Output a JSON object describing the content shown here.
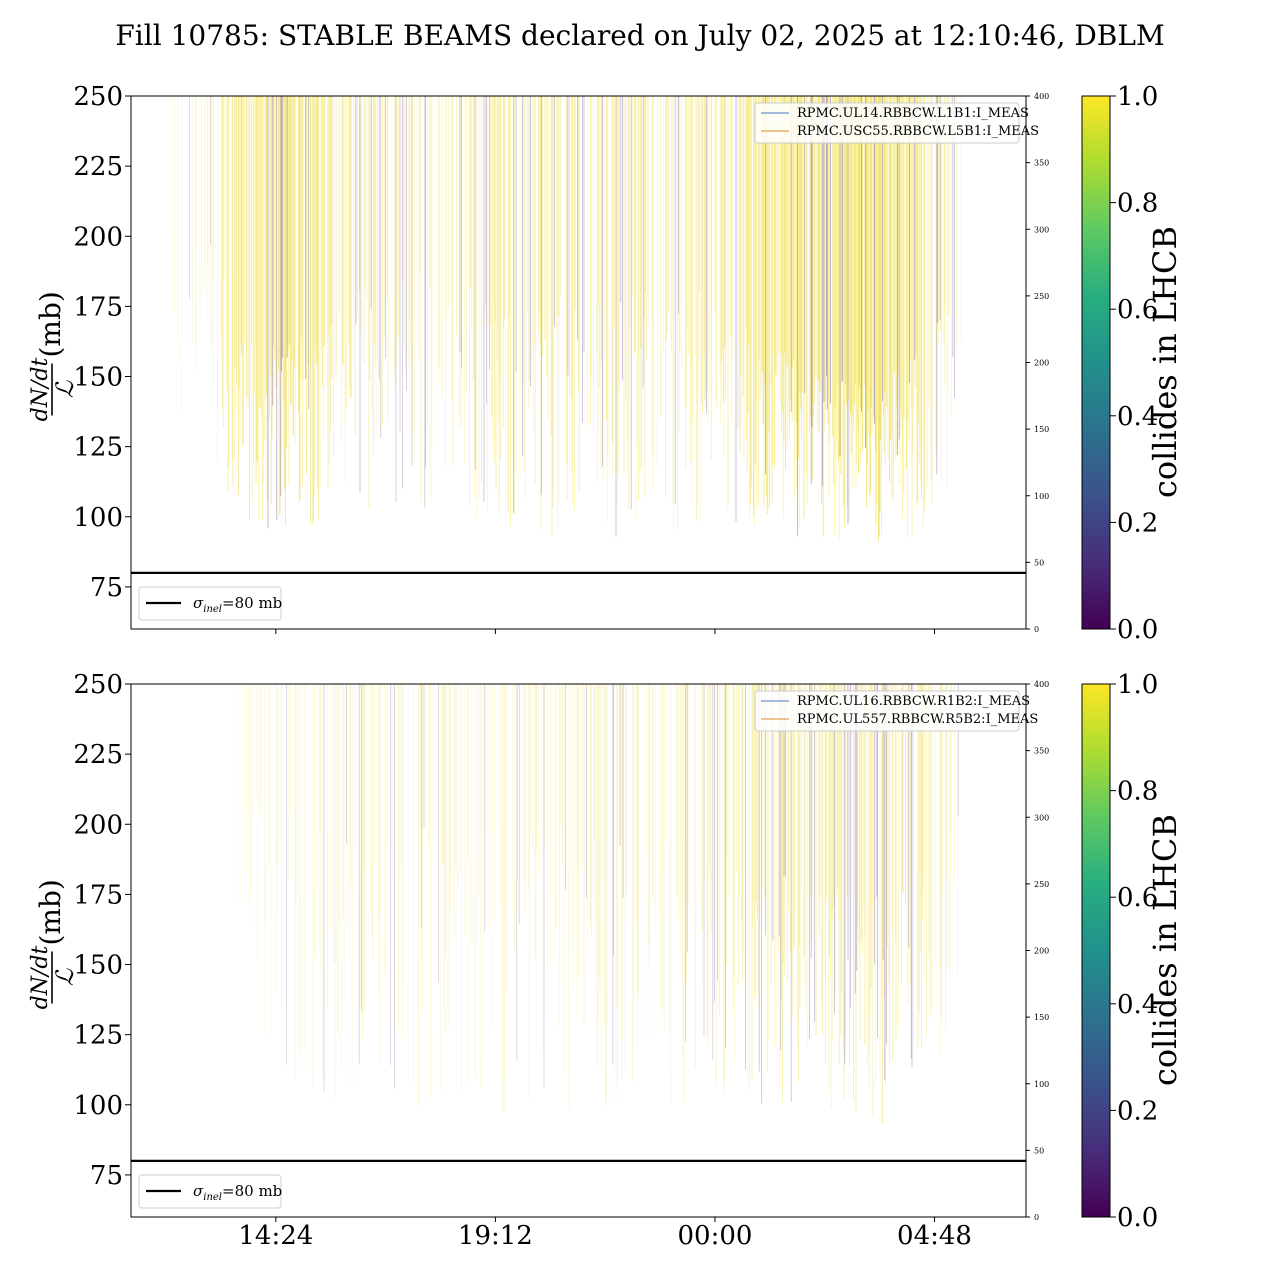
{
  "title": "Fill 10785: STABLE BEAMS declared on July 02, 2025 at 12:10:46, DBLM",
  "chart_data": [
    {
      "type": "line",
      "panel": "top",
      "ylabel": "dN/dt / L (mb)",
      "ylim": [
        60,
        250
      ],
      "yticks": [
        75,
        100,
        125,
        150,
        175,
        200,
        225,
        250
      ],
      "y2lim": [
        0,
        400
      ],
      "y2ticks": [
        0,
        50,
        100,
        150,
        200,
        250,
        300,
        350,
        400
      ],
      "xlim": [
        "11:14",
        "06:48"
      ],
      "xticks": [
        "14:24",
        "19:12",
        "00:00",
        "04:48"
      ],
      "show_xticklabels": false,
      "legend_top": [
        "RPMC.UL14.RBBCW.L1B1:I_MEAS",
        "RPMC.USC55.RBBCW.L5B1:I_MEAS"
      ],
      "legend_bottom": [
        "σinel=80 mb"
      ],
      "hline": {
        "y": 80,
        "label": "σinel=80 mb"
      },
      "colorbar": {
        "label": "collides in LHCB",
        "range": [
          0.0,
          1.0
        ],
        "ticks": [
          "0.0",
          "0.2",
          "0.4",
          "0.6",
          "0.8",
          "1.0"
        ]
      },
      "density_profile": [
        {
          "time": "12:00",
          "density": 0.05,
          "min_y": 115
        },
        {
          "time": "12:45",
          "density": 0.08,
          "min_y": 135
        },
        {
          "time": "13:36",
          "density": 0.7,
          "min_y": 98
        },
        {
          "time": "14:24",
          "density": 0.75,
          "min_y": 95
        },
        {
          "time": "15:36",
          "density": 0.6,
          "min_y": 98
        },
        {
          "time": "16:48",
          "density": 0.35,
          "min_y": 105
        },
        {
          "time": "18:00",
          "density": 0.3,
          "min_y": 100
        },
        {
          "time": "19:12",
          "density": 0.5,
          "min_y": 95
        },
        {
          "time": "20:24",
          "density": 0.45,
          "min_y": 92
        },
        {
          "time": "21:36",
          "density": 0.55,
          "min_y": 92
        },
        {
          "time": "22:48",
          "density": 0.4,
          "min_y": 95
        },
        {
          "time": "00:00",
          "density": 0.5,
          "min_y": 95
        },
        {
          "time": "01:12",
          "density": 0.75,
          "min_y": 95
        },
        {
          "time": "02:24",
          "density": 0.85,
          "min_y": 90
        },
        {
          "time": "03:36",
          "density": 0.9,
          "min_y": 88
        },
        {
          "time": "04:48",
          "density": 0.65,
          "min_y": 95
        },
        {
          "time": "05:24",
          "density": 0.4,
          "min_y": 115
        }
      ]
    },
    {
      "type": "line",
      "panel": "bottom",
      "ylabel": "dN/dt / L (mb)",
      "ylim": [
        60,
        250
      ],
      "yticks": [
        75,
        100,
        125,
        150,
        175,
        200,
        225,
        250
      ],
      "y2lim": [
        0,
        400
      ],
      "y2ticks": [
        0,
        50,
        100,
        150,
        200,
        250,
        300,
        350,
        400
      ],
      "xlim": [
        "11:14",
        "06:48"
      ],
      "xticks": [
        "14:24",
        "19:12",
        "00:00",
        "04:48"
      ],
      "show_xticklabels": true,
      "legend_top": [
        "RPMC.UL16.RBBCW.R1B2:I_MEAS",
        "RPMC.UL557.RBBCW.R5B2:I_MEAS"
      ],
      "legend_bottom": [
        "σinel=80 mb"
      ],
      "hline": {
        "y": 80,
        "label": "σinel=80 mb"
      },
      "colorbar": {
        "label": "collides in LHCB",
        "range": [
          0.0,
          1.0
        ],
        "ticks": [
          "0.0",
          "0.2",
          "0.4",
          "0.6",
          "0.8",
          "1.0"
        ]
      },
      "density_profile": [
        {
          "time": "13:36",
          "density": 0.05,
          "min_y": 150
        },
        {
          "time": "14:24",
          "density": 0.15,
          "min_y": 110
        },
        {
          "time": "15:36",
          "density": 0.2,
          "min_y": 100
        },
        {
          "time": "16:48",
          "density": 0.2,
          "min_y": 105
        },
        {
          "time": "18:00",
          "density": 0.2,
          "min_y": 95
        },
        {
          "time": "19:12",
          "density": 0.2,
          "min_y": 95
        },
        {
          "time": "20:24",
          "density": 0.2,
          "min_y": 95
        },
        {
          "time": "21:36",
          "density": 0.25,
          "min_y": 95
        },
        {
          "time": "22:48",
          "density": 0.25,
          "min_y": 95
        },
        {
          "time": "00:00",
          "density": 0.3,
          "min_y": 100
        },
        {
          "time": "01:12",
          "density": 0.45,
          "min_y": 100
        },
        {
          "time": "02:24",
          "density": 0.5,
          "min_y": 95
        },
        {
          "time": "03:36",
          "density": 0.55,
          "min_y": 92
        },
        {
          "time": "04:48",
          "density": 0.4,
          "min_y": 100
        },
        {
          "time": "05:24",
          "density": 0.2,
          "min_y": 150
        }
      ]
    }
  ]
}
